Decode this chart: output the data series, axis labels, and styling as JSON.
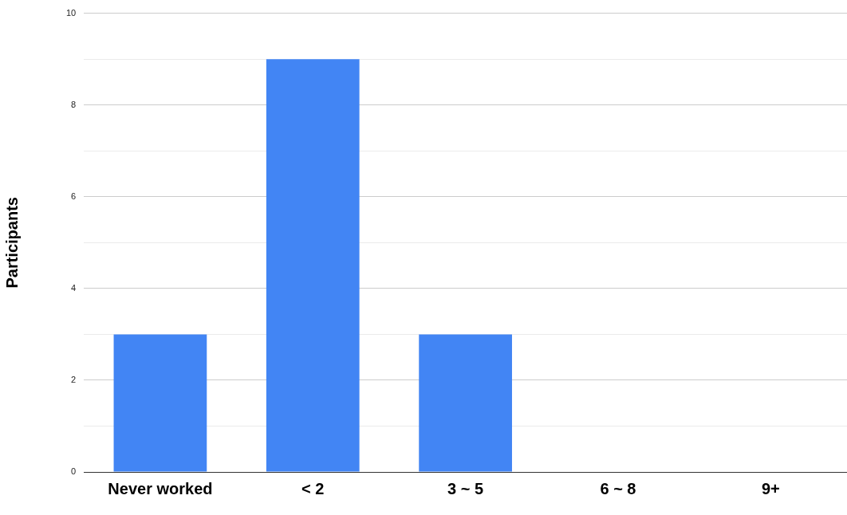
{
  "chart_data": {
    "type": "bar",
    "ylabel": "Participants",
    "categories": [
      "Never worked",
      "< 2",
      "3 ~ 5",
      "6 ~ 8",
      "9+"
    ],
    "values": [
      3,
      9,
      3,
      0,
      0
    ],
    "color": "#4285f4",
    "ylim": [
      0,
      10
    ],
    "yticks": [
      0,
      {
        "value": 1,
        "label": null
      },
      2,
      {
        "value": 3,
        "label": null
      },
      4,
      {
        "value": 5,
        "label": null
      },
      6,
      {
        "value": 7,
        "label": null
      },
      8,
      {
        "value": 9,
        "label": null
      },
      10
    ],
    "grid": "y",
    "legend": false
  }
}
